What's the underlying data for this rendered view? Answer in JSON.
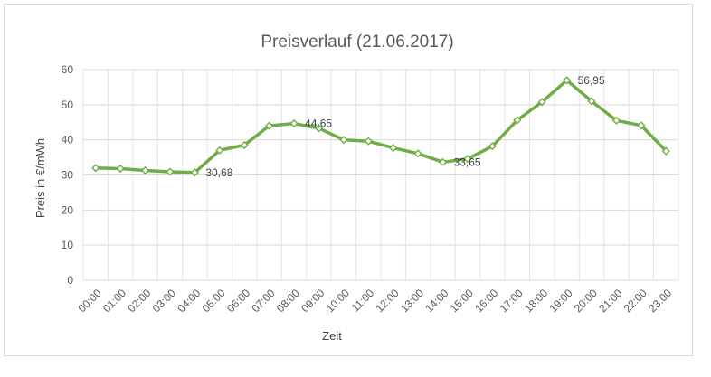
{
  "chart_data": {
    "type": "line",
    "title": "Preisverlauf (21.06.2017)",
    "xlabel": "Zeit",
    "ylabel": "Preis in €/mWh",
    "ylim": [
      0,
      60
    ],
    "yticks": [
      0,
      10,
      20,
      30,
      40,
      50,
      60
    ],
    "grid": true,
    "categories": [
      "00:00",
      "01:00",
      "02:00",
      "03:00",
      "04:00",
      "05:00",
      "06:00",
      "07:00",
      "08:00",
      "09:00",
      "10:00",
      "11:00",
      "12:00",
      "13:00",
      "14:00",
      "15:00",
      "16:00",
      "17:00",
      "18:00",
      "19:00",
      "20:00",
      "21:00",
      "22:00",
      "23:00"
    ],
    "series": [
      {
        "color": "#70ad47",
        "values": [
          32.0,
          31.8,
          31.3,
          30.9,
          30.68,
          37.0,
          38.5,
          44.0,
          44.65,
          43.3,
          40.0,
          39.6,
          37.7,
          36.1,
          33.65,
          34.6,
          38.2,
          45.6,
          50.8,
          56.95,
          51.0,
          45.5,
          44.1,
          36.8
        ]
      }
    ],
    "data_labels": [
      {
        "index": 4,
        "text": "30,68"
      },
      {
        "index": 8,
        "text": "44,65"
      },
      {
        "index": 14,
        "text": "33,65"
      },
      {
        "index": 19,
        "text": "56,95"
      }
    ]
  }
}
